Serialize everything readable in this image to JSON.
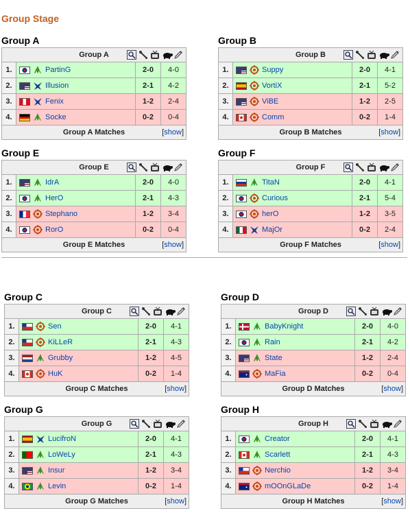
{
  "page_title": "Group Stage",
  "show_label": "show",
  "colors": {
    "title": "#c06020",
    "win_row": "#ccffcc",
    "lose_row": "#ffcccc",
    "link": "#0645ad"
  },
  "header_icons": [
    "magnifier-icon",
    "wrench-icon",
    "tv-icon",
    "turtle-icon",
    "pen-icon"
  ],
  "groups": [
    {
      "name": "Group A",
      "header": "Group A",
      "footer": "Group A Matches",
      "players": [
        {
          "pos": "1.",
          "flag": "kr",
          "race": "zerg-icon",
          "name": "PartinG",
          "match": "2-0",
          "games": "4-0",
          "result": "win"
        },
        {
          "pos": "2.",
          "flag": "us",
          "race": "protoss-icon",
          "name": "Illusion",
          "match": "2-1",
          "games": "4-2",
          "result": "win"
        },
        {
          "pos": "3.",
          "flag": "pe",
          "race": "protoss-icon",
          "name": "Fenix",
          "match": "1-2",
          "games": "2-4",
          "result": "lose"
        },
        {
          "pos": "4.",
          "flag": "de",
          "race": "zerg-icon",
          "name": "Socke",
          "match": "0-2",
          "games": "0-4",
          "result": "lose"
        }
      ]
    },
    {
      "name": "Group B",
      "header": "Group B",
      "footer": "Group B Matches",
      "players": [
        {
          "pos": "1.",
          "flag": "us",
          "race": "terran-icon",
          "name": "Suppy",
          "match": "2-0",
          "games": "4-1",
          "result": "win"
        },
        {
          "pos": "2.",
          "flag": "es",
          "race": "terran-icon",
          "name": "VortiX",
          "match": "2-1",
          "games": "5-2",
          "result": "win"
        },
        {
          "pos": "3.",
          "flag": "us",
          "race": "terran-icon",
          "name": "ViBE",
          "match": "1-2",
          "games": "2-5",
          "result": "lose"
        },
        {
          "pos": "4.",
          "flag": "ca",
          "race": "terran-icon",
          "name": "Comm",
          "match": "0-2",
          "games": "1-4",
          "result": "lose"
        }
      ]
    },
    {
      "name": "Group E",
      "header": "Group E",
      "footer": "Group E Matches",
      "players": [
        {
          "pos": "1.",
          "flag": "us",
          "race": "zerg-icon",
          "name": "IdrA",
          "match": "2-0",
          "games": "4-0",
          "result": "win"
        },
        {
          "pos": "2.",
          "flag": "kr",
          "race": "zerg-icon",
          "name": "HerO",
          "match": "2-1",
          "games": "4-3",
          "result": "win"
        },
        {
          "pos": "3.",
          "flag": "fr",
          "race": "terran-icon",
          "name": "Stephano",
          "match": "1-2",
          "games": "3-4",
          "result": "lose"
        },
        {
          "pos": "4.",
          "flag": "kr",
          "race": "terran-icon",
          "name": "RorO",
          "match": "0-2",
          "games": "0-4",
          "result": "lose"
        }
      ]
    },
    {
      "name": "Group F",
      "header": "Group F",
      "footer": "Group F Matches",
      "players": [
        {
          "pos": "1.",
          "flag": "ru",
          "race": "zerg-icon",
          "name": "TitaN",
          "match": "2-0",
          "games": "4-1",
          "result": "win"
        },
        {
          "pos": "2.",
          "flag": "kr",
          "race": "terran-icon",
          "name": "Curious",
          "match": "2-1",
          "games": "5-4",
          "result": "win"
        },
        {
          "pos": "3.",
          "flag": "kr",
          "race": "terran-icon",
          "name": "herO",
          "match": "1-2",
          "games": "3-5",
          "result": "lose"
        },
        {
          "pos": "4.",
          "flag": "mx",
          "race": "protoss-icon",
          "name": "MajOr",
          "match": "0-2",
          "games": "2-4",
          "result": "lose"
        }
      ]
    },
    {
      "name": "Group C",
      "header": "Group C",
      "footer": "Group C Matches",
      "players": [
        {
          "pos": "1.",
          "flag": "cl",
          "race": "terran-icon",
          "name": "Sen",
          "match": "2-0",
          "games": "4-1",
          "result": "win"
        },
        {
          "pos": "2.",
          "flag": "cl",
          "race": "terran-icon",
          "name": "KiLLeR",
          "match": "2-1",
          "games": "4-3",
          "result": "win"
        },
        {
          "pos": "3.",
          "flag": "nl",
          "race": "zerg-icon",
          "name": "Grubby",
          "match": "1-2",
          "games": "4-5",
          "result": "lose"
        },
        {
          "pos": "4.",
          "flag": "ca",
          "race": "terran-icon",
          "name": "HuK",
          "match": "0-2",
          "games": "1-4",
          "result": "lose"
        }
      ]
    },
    {
      "name": "Group D",
      "header": "Group D",
      "footer": "Group D Matches",
      "players": [
        {
          "pos": "1.",
          "flag": "dk",
          "race": "zerg-icon",
          "name": "BabyKnight",
          "match": "2-0",
          "games": "4-0",
          "result": "win"
        },
        {
          "pos": "2.",
          "flag": "kr",
          "race": "zerg-icon",
          "name": "Rain",
          "match": "2-1",
          "games": "4-2",
          "result": "win"
        },
        {
          "pos": "3.",
          "flag": "us",
          "race": "zerg-icon",
          "name": "State",
          "match": "1-2",
          "games": "2-4",
          "result": "lose"
        },
        {
          "pos": "4.",
          "flag": "au",
          "race": "terran-icon",
          "name": "MaFia",
          "match": "0-2",
          "games": "0-4",
          "result": "lose"
        }
      ]
    },
    {
      "name": "Group G",
      "header": "Group G",
      "footer": "Group G Matches",
      "players": [
        {
          "pos": "1.",
          "flag": "es",
          "race": "protoss-icon",
          "name": "LucifroN",
          "match": "2-0",
          "games": "4-1",
          "result": "win"
        },
        {
          "pos": "2.",
          "flag": "pt",
          "race": "zerg-icon",
          "name": "LoWeLy",
          "match": "2-1",
          "games": "4-3",
          "result": "win"
        },
        {
          "pos": "3.",
          "flag": "us",
          "race": "zerg-icon",
          "name": "Insur",
          "match": "1-2",
          "games": "3-4",
          "result": "lose"
        },
        {
          "pos": "4.",
          "flag": "br",
          "race": "zerg-icon",
          "name": "Levin",
          "match": "0-2",
          "games": "1-4",
          "result": "lose"
        }
      ]
    },
    {
      "name": "Group H",
      "header": "Group H",
      "footer": "Group H Matches",
      "players": [
        {
          "pos": "1.",
          "flag": "kr",
          "race": "zerg-icon",
          "name": "Creator",
          "match": "2-0",
          "games": "4-1",
          "result": "win"
        },
        {
          "pos": "2.",
          "flag": "ca",
          "race": "zerg-icon",
          "name": "Scarlett",
          "match": "2-1",
          "games": "4-3",
          "result": "win"
        },
        {
          "pos": "3.",
          "flag": "cl",
          "race": "terran-icon",
          "name": "Nerchio",
          "match": "1-2",
          "games": "3-4",
          "result": "lose"
        },
        {
          "pos": "4.",
          "flag": "au",
          "race": "terran-icon",
          "name": "mOOnGLaDe",
          "match": "0-2",
          "games": "1-4",
          "result": "lose"
        }
      ]
    }
  ]
}
